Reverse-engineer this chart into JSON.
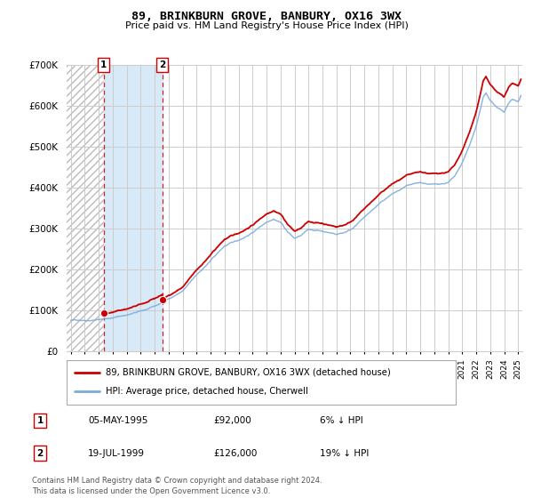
{
  "title": "89, BRINKBURN GROVE, BANBURY, OX16 3WX",
  "subtitle": "Price paid vs. HM Land Registry's House Price Index (HPI)",
  "transactions": [
    {
      "date_num": 1995.35,
      "price": 92000,
      "label": "1"
    },
    {
      "date_num": 1999.55,
      "price": 126000,
      "label": "2"
    }
  ],
  "transaction_table": [
    {
      "num": "1",
      "date": "05-MAY-1995",
      "price": "£92,000",
      "hpi": "6% ↓ HPI"
    },
    {
      "num": "2",
      "date": "19-JUL-1999",
      "price": "£126,000",
      "hpi": "19% ↓ HPI"
    }
  ],
  "legend_entries": [
    {
      "label": "89, BRINKBURN GROVE, BANBURY, OX16 3WX (detached house)",
      "color": "#cc0000"
    },
    {
      "label": "HPI: Average price, detached house, Cherwell",
      "color": "#7aabdb"
    }
  ],
  "footer": "Contains HM Land Registry data © Crown copyright and database right 2024.\nThis data is licensed under the Open Government Licence v3.0.",
  "ylim": [
    0,
    700000
  ],
  "yticks": [
    0,
    100000,
    200000,
    300000,
    400000,
    500000,
    600000,
    700000
  ],
  "ytick_labels": [
    "£0",
    "£100K",
    "£200K",
    "£300K",
    "£400K",
    "£500K",
    "£600K",
    "£700K"
  ],
  "hpi_color": "#7aabdb",
  "price_color": "#cc0000",
  "grid_color": "#cccccc",
  "hatch_region1_color": "#dddddd",
  "shade_region2_color": "#ddeeff",
  "xlim_start": 1993.0,
  "xlim_end": 2025.3
}
